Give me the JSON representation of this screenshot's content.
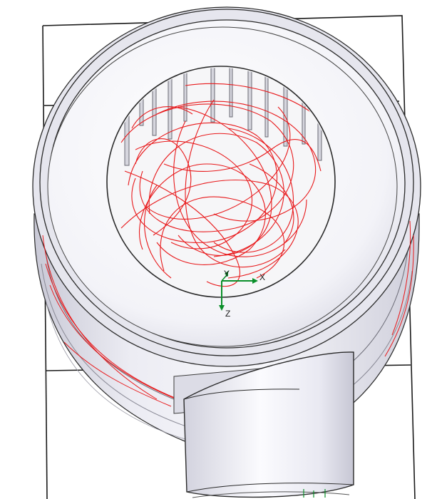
{
  "colors": {
    "background": "#ffffff",
    "bounding_box": "#1a1a1a",
    "housing_body": "#dcdce6",
    "housing_top": "#f6f6fa",
    "bore": "#f2f2f4",
    "flow_lines": "#e8191b",
    "triad_axes": "#0a8f2a",
    "outlet_pipe": "#e4e4ee"
  },
  "icons": {
    "triad": "coordinate-triad-icon"
  },
  "triad": {
    "x_label": "X",
    "y_label": "Y",
    "z_label": "Z"
  }
}
